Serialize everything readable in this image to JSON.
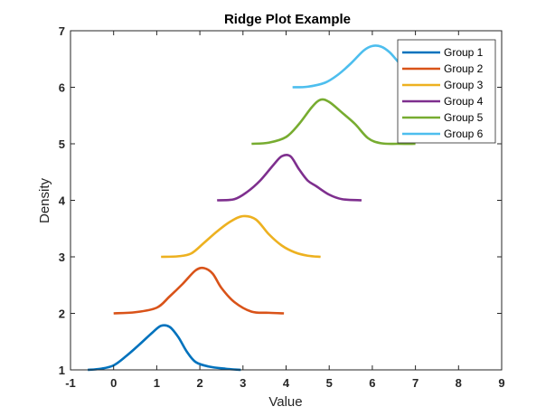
{
  "chart_data": {
    "type": "line",
    "title": "Ridge Plot Example",
    "xlabel": "Value",
    "ylabel": "Density",
    "xlim": [
      -1,
      9
    ],
    "ylim": [
      1,
      7
    ],
    "xticks": [
      -1,
      0,
      1,
      2,
      3,
      4,
      5,
      6,
      7,
      8,
      9
    ],
    "yticks": [
      1,
      2,
      3,
      4,
      5,
      6,
      7
    ],
    "grid": false,
    "legend_position": "top-right",
    "series": [
      {
        "name": "Group 1",
        "color": "#0072BD",
        "x": [
          -0.6,
          -0.3,
          0.0,
          0.3,
          0.6,
          0.9,
          1.1,
          1.3,
          1.5,
          1.7,
          1.9,
          2.2,
          2.6,
          2.95
        ],
        "y": [
          1.0,
          1.02,
          1.08,
          1.25,
          1.45,
          1.66,
          1.78,
          1.76,
          1.58,
          1.32,
          1.14,
          1.06,
          1.02,
          1.0
        ]
      },
      {
        "name": "Group 2",
        "color": "#D95319",
        "x": [
          0.0,
          0.5,
          1.0,
          1.3,
          1.6,
          1.9,
          2.1,
          2.3,
          2.5,
          2.8,
          3.2,
          3.6,
          3.95
        ],
        "y": [
          2.0,
          2.02,
          2.1,
          2.3,
          2.52,
          2.76,
          2.8,
          2.7,
          2.45,
          2.2,
          2.03,
          2.01,
          2.0
        ]
      },
      {
        "name": "Group 3",
        "color": "#EDB120",
        "x": [
          1.1,
          1.5,
          1.8,
          2.1,
          2.4,
          2.7,
          3.0,
          3.3,
          3.6,
          3.9,
          4.2,
          4.5,
          4.8
        ],
        "y": [
          3.0,
          3.01,
          3.06,
          3.25,
          3.45,
          3.62,
          3.72,
          3.66,
          3.4,
          3.2,
          3.08,
          3.02,
          3.0
        ]
      },
      {
        "name": "Group 4",
        "color": "#7E2F8E",
        "x": [
          2.4,
          2.8,
          3.1,
          3.4,
          3.7,
          3.9,
          4.1,
          4.3,
          4.5,
          4.7,
          5.0,
          5.3,
          5.75
        ],
        "y": [
          4.0,
          4.02,
          4.15,
          4.35,
          4.62,
          4.78,
          4.78,
          4.55,
          4.35,
          4.25,
          4.1,
          4.02,
          4.0
        ]
      },
      {
        "name": "Group 5",
        "color": "#77AC30",
        "x": [
          3.2,
          3.6,
          4.0,
          4.3,
          4.6,
          4.8,
          5.0,
          5.3,
          5.6,
          5.9,
          6.2,
          6.6,
          7.0
        ],
        "y": [
          5.0,
          5.02,
          5.12,
          5.35,
          5.65,
          5.78,
          5.74,
          5.55,
          5.35,
          5.1,
          5.01,
          5.0,
          5.0
        ]
      },
      {
        "name": "Group 6",
        "color": "#4DBEEE",
        "x": [
          4.15,
          4.5,
          4.9,
          5.2,
          5.5,
          5.8,
          6.0,
          6.2,
          6.4,
          6.6,
          6.8
        ],
        "y": [
          6.0,
          6.01,
          6.08,
          6.22,
          6.42,
          6.65,
          6.73,
          6.72,
          6.62,
          6.45,
          6.3
        ]
      }
    ]
  }
}
